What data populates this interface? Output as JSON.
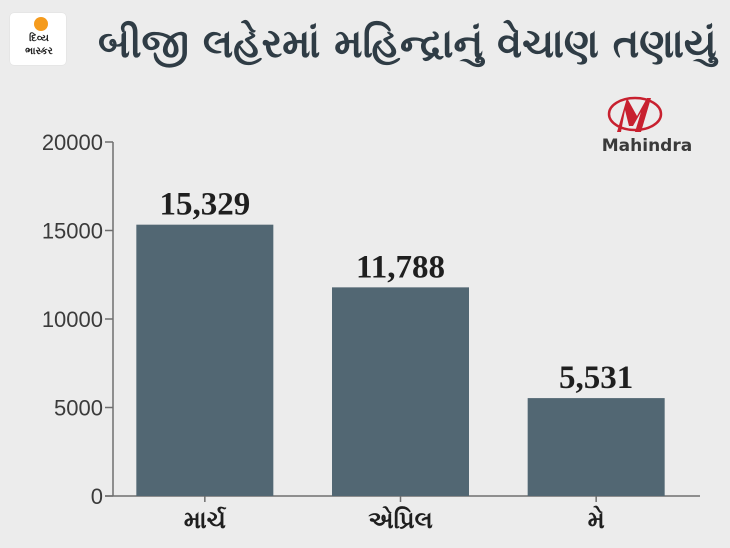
{
  "header": {
    "publisher_logo_line1": "દિવ્ય",
    "publisher_logo_line2": "ભાસ્કર",
    "title": "બીજી લહેરમાં મહિન્દ્રાનું વેચાણ તણાયું"
  },
  "brand": {
    "name": "Mahindra",
    "logo_color": "#c8202f"
  },
  "chart_data": {
    "type": "bar",
    "title": "બીજી લહેરમાં મહિન્દ્રાનું વેચાણ તણાયું",
    "categories": [
      "માર્ચ",
      "એપ્રિલ",
      "મે"
    ],
    "values": [
      15329,
      11788,
      5531
    ],
    "data_labels": [
      "15,329",
      "11,788",
      "5,531"
    ],
    "ylim": [
      0,
      20000
    ],
    "yticks": [
      0,
      5000,
      10000,
      15000,
      20000
    ],
    "xlabel": "",
    "ylabel": "",
    "grid": false,
    "legend": "none",
    "bar_color": "#526773"
  }
}
